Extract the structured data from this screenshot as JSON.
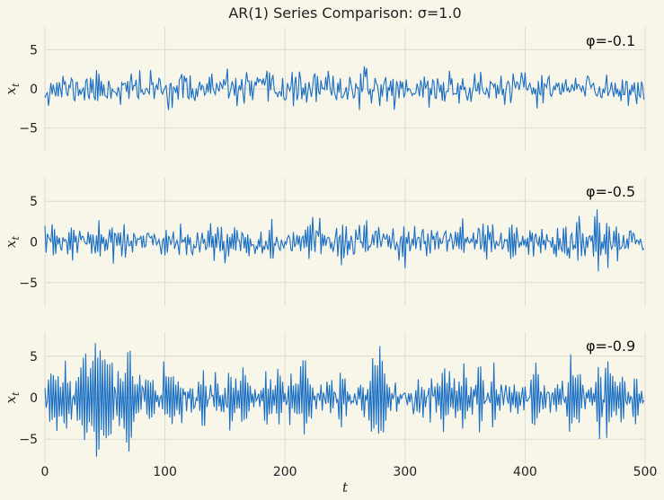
{
  "chart_data": {
    "type": "line",
    "title": "AR(1) Series Comparison: σ=1.0",
    "xlabel": "t",
    "xlim": [
      0,
      500
    ],
    "x_ticks": [
      "0",
      "100",
      "200",
      "300",
      "400",
      "500"
    ],
    "n_points": 500,
    "sigma": 1.0,
    "line_color": "#1a6fc4",
    "grid": true,
    "panels": [
      {
        "annotation": "φ=-0.1",
        "phi": -0.1,
        "ylabel_base": "x",
        "ylabel_sub": "t",
        "ylim": [
          -7.9,
          7.9
        ],
        "y_ticks": [
          {
            "value": 5,
            "label": "5"
          },
          {
            "value": 0,
            "label": "0"
          },
          {
            "value": -5,
            "label": "−5"
          }
        ],
        "seed": 11
      },
      {
        "annotation": "φ=-0.5",
        "phi": -0.5,
        "ylabel_base": "x",
        "ylabel_sub": "t",
        "ylim": [
          -7.9,
          7.9
        ],
        "y_ticks": [
          {
            "value": 5,
            "label": "5"
          },
          {
            "value": 0,
            "label": "0"
          },
          {
            "value": -5,
            "label": "−5"
          }
        ],
        "seed": 23
      },
      {
        "annotation": "φ=-0.9",
        "phi": -0.9,
        "ylabel_base": "x",
        "ylabel_sub": "t",
        "ylim": [
          -7.9,
          7.9
        ],
        "y_ticks": [
          {
            "value": 5,
            "label": "5"
          },
          {
            "value": 0,
            "label": "0"
          },
          {
            "value": -5,
            "label": "−5"
          }
        ],
        "seed": 37
      }
    ]
  }
}
